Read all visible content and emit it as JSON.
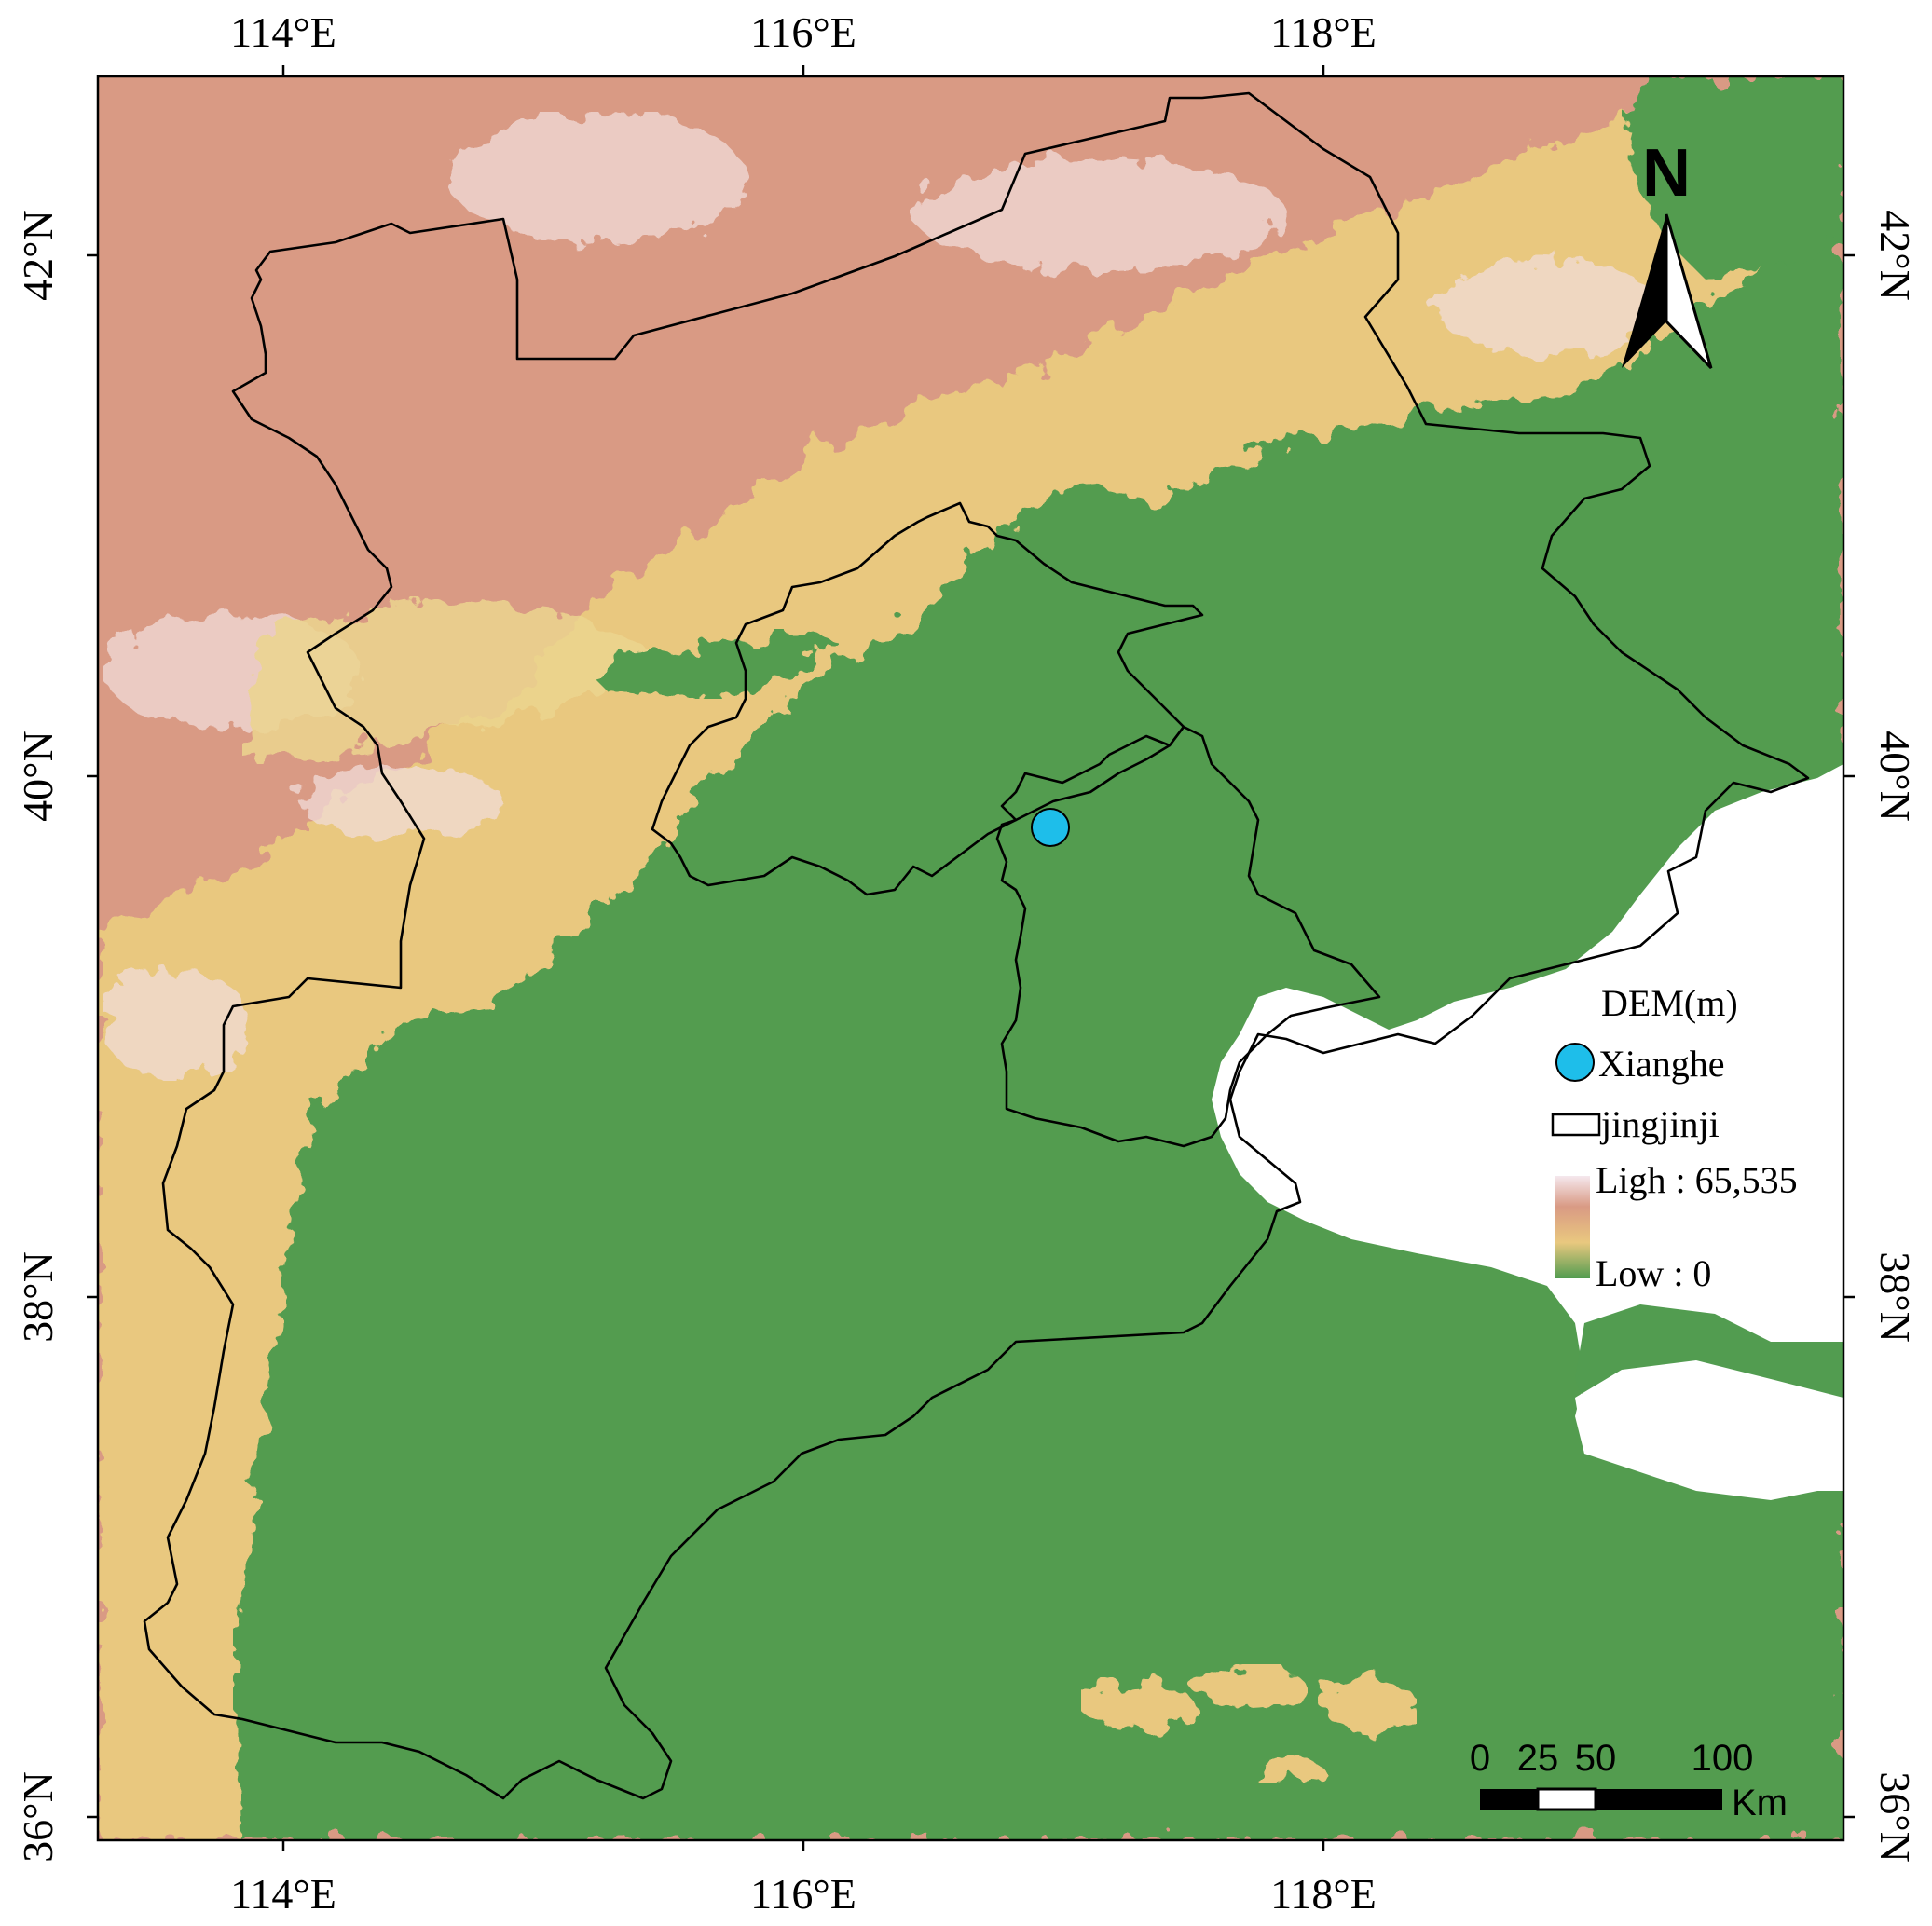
{
  "map": {
    "x_ticks": [
      "114°E",
      "116°E",
      "118°E"
    ],
    "y_ticks": [
      "42°N",
      "40°N",
      "38°N",
      "36°N"
    ],
    "colors": {
      "lowland": "#529c50",
      "mid": "#e9c87f",
      "high": "#d99a84",
      "peak": "#f5e8ee",
      "water": "#ffffff",
      "point": "#1ebeea"
    },
    "north_arrow": {
      "label": "N",
      "icon": "north-arrow-icon"
    },
    "point": {
      "name": "Xianghe",
      "lon": 116.99,
      "lat": 39.76
    }
  },
  "legend": {
    "title": "DEM(m)",
    "point_label": "Xianghe",
    "boundary_label": "jingjinji",
    "high_label": "Ligh : 65,535",
    "low_label": "Low : 0"
  },
  "scale_bar": {
    "labels": [
      "0",
      "25",
      "50",
      "100"
    ],
    "unit": "Km"
  }
}
